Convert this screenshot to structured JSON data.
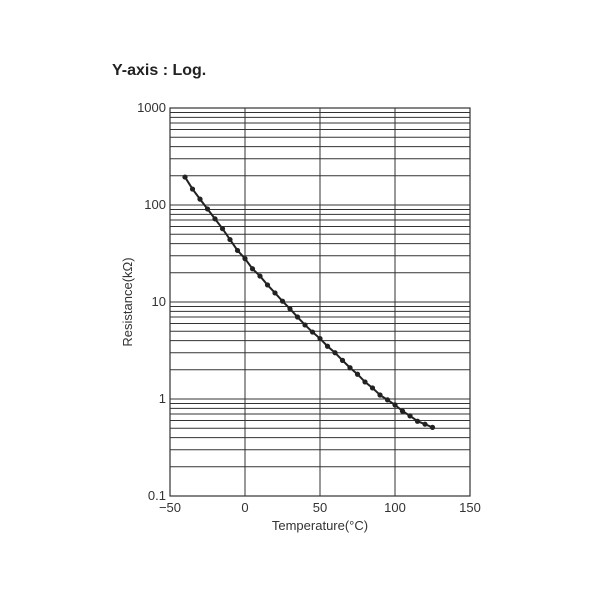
{
  "header": {
    "title": "Y-axis : Log."
  },
  "chart_data": {
    "type": "line",
    "title": "Y-axis : Log.",
    "xlabel": "Temperature(°C)",
    "ylabel": "Resistance(kΩ)",
    "xlim": [
      -50,
      150
    ],
    "ylim": [
      0.1,
      1000
    ],
    "yscale": "log",
    "x_ticks": [
      "-50",
      "0",
      "50",
      "100",
      "150"
    ],
    "y_ticks": [
      "0.1",
      "1",
      "10",
      "100",
      "1000"
    ],
    "grid": true,
    "legend": null,
    "series": [
      {
        "name": "Resistance",
        "marker": "circle",
        "color": "#222222",
        "x": [
          -40,
          -35,
          -30,
          -25,
          -20,
          -15,
          -10,
          -5,
          0,
          5,
          10,
          15,
          20,
          25,
          30,
          35,
          40,
          45,
          50,
          55,
          60,
          65,
          70,
          75,
          80,
          85,
          90,
          95,
          100,
          105,
          110,
          115,
          120,
          125
        ],
        "values": [
          194,
          146,
          115,
          91,
          72,
          57,
          44,
          34,
          28,
          22,
          18.5,
          15,
          12.4,
          10.2,
          8.5,
          7.0,
          5.8,
          4.9,
          4.2,
          3.5,
          3.0,
          2.5,
          2.1,
          1.8,
          1.5,
          1.3,
          1.1,
          0.98,
          0.87,
          0.75,
          0.67,
          0.59,
          0.55,
          0.51
        ]
      }
    ]
  }
}
